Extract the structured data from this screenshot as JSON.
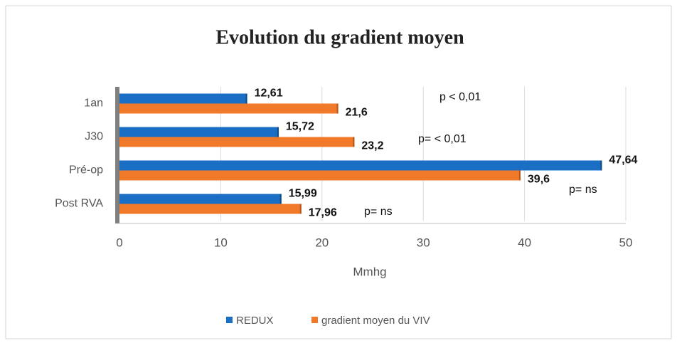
{
  "chart_data": {
    "type": "hbar",
    "title": "Evolution du gradient moyen",
    "categories": [
      "1an",
      "J30",
      "Pré-op",
      "Post RVA"
    ],
    "series": [
      {
        "name": "REDUX",
        "color": "#1a6fc4",
        "values": [
          12.61,
          15.72,
          47.64,
          15.99
        ],
        "value_labels": [
          "12,61",
          "15,72",
          "47,64",
          "15,99"
        ]
      },
      {
        "name": "gradient moyen du VIV",
        "color": "#f07a2a",
        "values": [
          21.6,
          23.2,
          39.6,
          17.96
        ],
        "value_labels": [
          "21,6",
          "23,2",
          "39,6",
          "17,96"
        ]
      }
    ],
    "xlim": [
      0,
      50
    ],
    "xticks": [
      0,
      10,
      20,
      30,
      40,
      50
    ],
    "x_label": "Mmhg",
    "grid": true,
    "annotations": [
      "p < 0,01",
      "p= < 0,01",
      "p= ns",
      "p= ns"
    ]
  }
}
